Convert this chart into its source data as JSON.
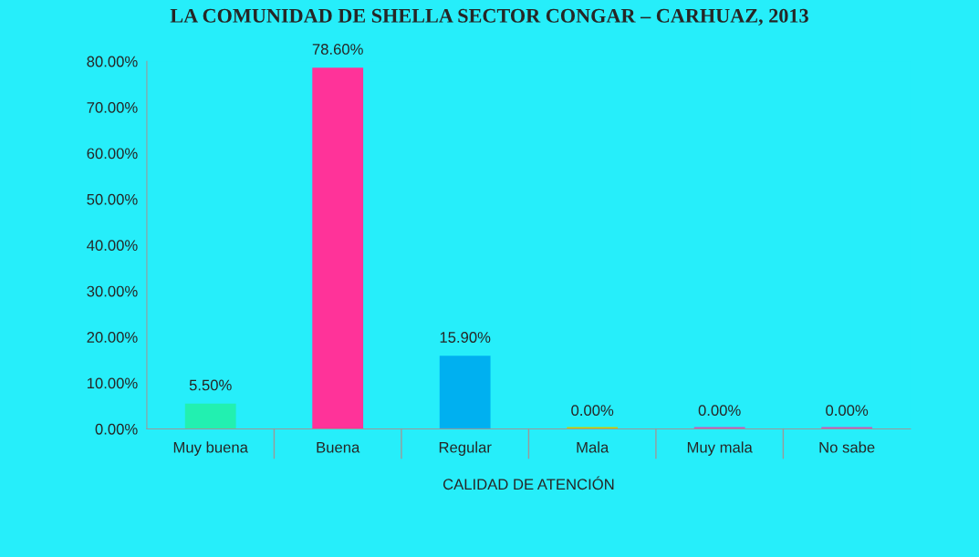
{
  "chart_data": {
    "type": "bar",
    "title": "LA COMUNIDAD DE SHELLA SECTOR CONGAR – CARHUAZ, 2013",
    "xlabel": "CALIDAD DE ATENCIÓN",
    "categories": [
      "Muy buena",
      "Buena",
      "Regular",
      "Mala",
      "Muy mala",
      "No sabe"
    ],
    "values": [
      5.5,
      78.6,
      15.9,
      0,
      0,
      0
    ],
    "colors": [
      "#22f0b0",
      "#ff3399",
      "#00b0f0",
      "#cccc00",
      "#cc55bb",
      "#cc55bb"
    ],
    "value_labels": [
      "5.50%",
      "78.60%",
      "15.90%",
      "0.00%",
      "0.00%",
      "0.00%"
    ],
    "ylim": [
      0,
      80
    ],
    "yticks": [
      {
        "value": 0,
        "label": "0.00%"
      },
      {
        "value": 10,
        "label": "10.00%"
      },
      {
        "value": 20,
        "label": "20.00%"
      },
      {
        "value": 30,
        "label": "30.00%"
      },
      {
        "value": 40,
        "label": "40.00%"
      },
      {
        "value": 50,
        "label": "50.00%"
      },
      {
        "value": 60,
        "label": "60.00%"
      },
      {
        "value": 70,
        "label": "70.00%"
      },
      {
        "value": 80,
        "label": "80.00%"
      }
    ],
    "grid": false,
    "legend": false
  }
}
